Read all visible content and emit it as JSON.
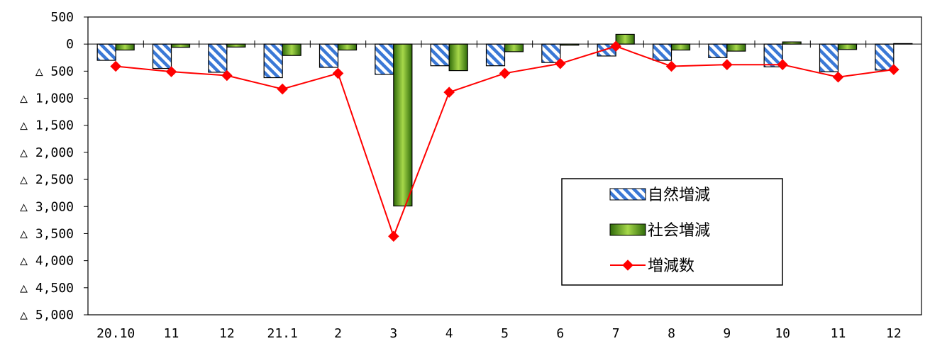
{
  "chart_data": {
    "type": "bar",
    "categories": [
      "20.10",
      "11",
      "12",
      "21.1",
      "2",
      "3",
      "4",
      "5",
      "6",
      "7",
      "8",
      "9",
      "10",
      "11",
      "12"
    ],
    "series": [
      {
        "name": "自然増減",
        "type": "bar",
        "color": "#3a78d6",
        "pattern": "diagonal-hatch",
        "values": [
          -300,
          -450,
          -520,
          -620,
          -430,
          -560,
          -400,
          -400,
          -340,
          -220,
          -300,
          -250,
          -420,
          -510,
          -480
        ]
      },
      {
        "name": "社会増減",
        "type": "bar",
        "color": "#6aa81a",
        "pattern": "gradient",
        "values": [
          -110,
          -60,
          -55,
          -210,
          -110,
          -2990,
          -490,
          -140,
          -20,
          180,
          -110,
          -130,
          40,
          -100,
          10
        ]
      },
      {
        "name": "増減数",
        "type": "line",
        "color": "#ff0000",
        "marker": "diamond",
        "values": [
          -410,
          -510,
          -580,
          -830,
          -540,
          -3550,
          -890,
          -540,
          -360,
          -40,
          -410,
          -380,
          -380,
          -610,
          -470
        ]
      }
    ],
    "ylim": [
      -5000,
      500
    ],
    "yticks": [
      500,
      0,
      -500,
      -1000,
      -1500,
      -2000,
      -2500,
      -3000,
      -3500,
      -4000,
      -4500,
      -5000
    ],
    "ytick_labels": [
      "500",
      "0",
      "△ 500",
      "△ 1,000",
      "△ 1,500",
      "△ 2,000",
      "△ 2,500",
      "△ 3,000",
      "△ 3,500",
      "△ 4,000",
      "△ 4,500",
      "△ 5,000"
    ],
    "legend_position": "inside-lower-right",
    "grid": false
  }
}
